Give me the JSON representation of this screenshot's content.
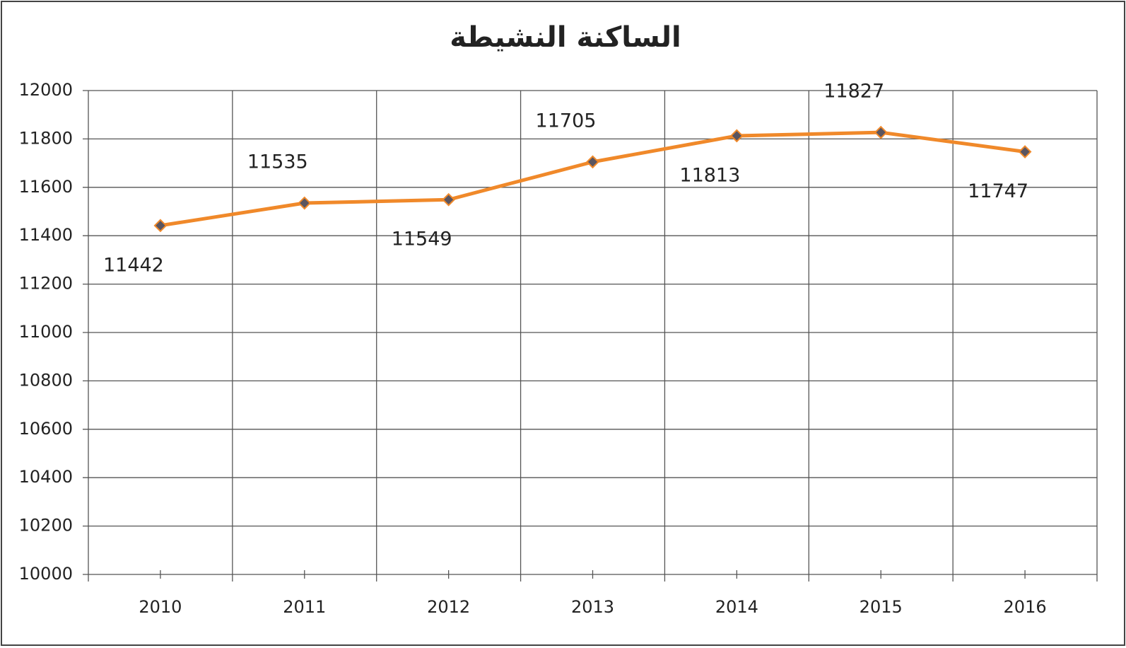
{
  "chart_data": {
    "type": "line",
    "title": "الساكنة النشيطة",
    "categories": [
      "2010",
      "2011",
      "2012",
      "2013",
      "2014",
      "2015",
      "2016"
    ],
    "values": [
      11442,
      11535,
      11549,
      11705,
      11813,
      11827,
      11747
    ],
    "color": "#f0892a",
    "marker_color": "#5a5560",
    "ylim": [
      10000,
      12000
    ],
    "yticks": [
      10000,
      10200,
      10400,
      10600,
      10800,
      11000,
      11200,
      11400,
      11600,
      11800,
      12000
    ],
    "grid": true
  }
}
